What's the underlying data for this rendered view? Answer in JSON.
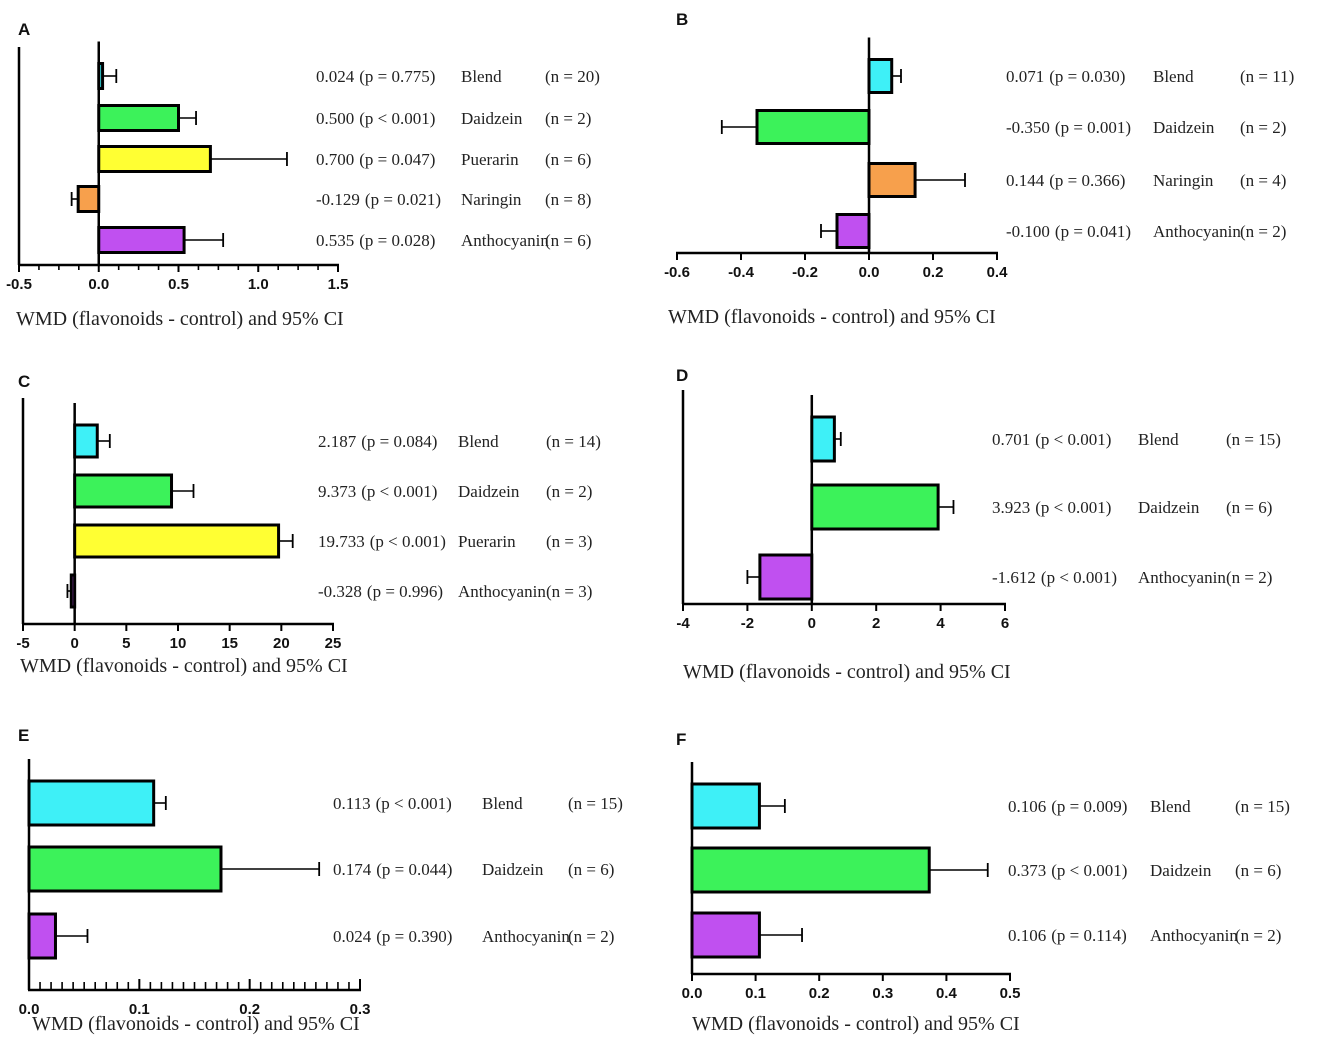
{
  "chart_data": [
    {
      "type": "bar",
      "orientation": "horizontal",
      "panel": "A",
      "xlabel": "WMD (flavonoids - control) and 95% CI",
      "xlim": [
        -0.5,
        1.5
      ],
      "xticks": [
        -0.5,
        0.0,
        0.5,
        1.0,
        1.5
      ],
      "tick_labels": [
        "-0.5",
        "0.0",
        "0.5",
        "1.0",
        "1.5"
      ],
      "ticks_per_major": 4,
      "bars": [
        {
          "name": "Blend",
          "value": 0.024,
          "ci_upper": 0.11,
          "color": "#3ef0f7",
          "effect": "0.024",
          "p": "(p = 0.775)",
          "n": "(n = 20)"
        },
        {
          "name": "Daidzein",
          "value": 0.5,
          "ci_upper": 0.61,
          "color": "#3cf25a",
          "effect": "0.500",
          "p": "(p < 0.001)",
          "n": "(n = 2)"
        },
        {
          "name": "Puerarin",
          "value": 0.7,
          "ci_upper": 1.18,
          "color": "#ffff33",
          "effect": "0.700",
          "p": "(p = 0.047)",
          "n": "(n = 6)"
        },
        {
          "name": "Naringin",
          "value": -0.129,
          "ci_lower": -0.17,
          "color": "#f7a04c",
          "effect": "-0.129",
          "p": "(p = 0.021)",
          "n": "(n = 8)"
        },
        {
          "name": "Anthocyanin",
          "value": 0.535,
          "ci_upper": 0.78,
          "color": "#c050f0",
          "effect": "0.535",
          "p": "(p = 0.028)",
          "n": "(n = 6)"
        }
      ]
    },
    {
      "type": "bar",
      "orientation": "horizontal",
      "panel": "B",
      "xlabel": "WMD (flavonoids - control) and 95% CI",
      "xlim": [
        -0.6,
        0.4
      ],
      "xticks": [
        -0.6,
        -0.4,
        -0.2,
        0.0,
        0.2,
        0.4
      ],
      "tick_labels": [
        "-0.6",
        "-0.4",
        "-0.2",
        "0.0",
        "0.2",
        "0.4"
      ],
      "ticks_per_major": 1,
      "bars": [
        {
          "name": "Blend",
          "value": 0.071,
          "ci_upper": 0.1,
          "color": "#3ef0f7",
          "effect": "0.071",
          "p": "(p = 0.030)",
          "n": "(n = 11)"
        },
        {
          "name": "Daidzein",
          "value": -0.35,
          "ci_lower": -0.46,
          "color": "#3cf25a",
          "effect": "-0.350",
          "p": "(p = 0.001)",
          "n": "(n = 2)"
        },
        {
          "name": "Naringin",
          "value": 0.144,
          "ci_upper": 0.3,
          "color": "#f7a04c",
          "effect": "0.144",
          "p": "(p = 0.366)",
          "n": "(n = 4)"
        },
        {
          "name": "Anthocyanin",
          "value": -0.1,
          "ci_lower": -0.15,
          "color": "#c050f0",
          "effect": "-0.100",
          "p": "(p = 0.041)",
          "n": "(n = 2)"
        }
      ]
    },
    {
      "type": "bar",
      "orientation": "horizontal",
      "panel": "C",
      "xlabel": "WMD (flavonoids - control) and 95% CI",
      "xlim": [
        -5,
        25
      ],
      "xticks": [
        -5,
        0,
        5,
        10,
        15,
        20,
        25
      ],
      "tick_labels": [
        "-5",
        "0",
        "5",
        "10",
        "15",
        "20",
        "25"
      ],
      "ticks_per_major": 1,
      "bars": [
        {
          "name": "Blend",
          "value": 2.187,
          "ci_upper": 3.4,
          "color": "#3ef0f7",
          "effect": "2.187",
          "p": "(p = 0.084)",
          "n": "(n = 14)"
        },
        {
          "name": "Daidzein",
          "value": 9.373,
          "ci_upper": 11.5,
          "color": "#3cf25a",
          "effect": "9.373",
          "p": "(p < 0.001)",
          "n": "(n = 2)"
        },
        {
          "name": "Puerarin",
          "value": 19.733,
          "ci_upper": 21.1,
          "color": "#ffff33",
          "effect": "19.733",
          "p": "(p < 0.001)",
          "n": "(n = 3)"
        },
        {
          "name": "Anthocyanin",
          "value": -0.328,
          "ci_lower": -0.7,
          "color": "#c050f0",
          "effect": "-0.328",
          "p": "(p = 0.996)",
          "n": "(n = 3)"
        }
      ]
    },
    {
      "type": "bar",
      "orientation": "horizontal",
      "panel": "D",
      "xlabel": "WMD (flavonoids - control) and 95% CI",
      "xlim": [
        -4,
        6
      ],
      "xticks": [
        -4,
        -2,
        0,
        2,
        4,
        6
      ],
      "tick_labels": [
        "-4",
        "-2",
        "0",
        "2",
        "4",
        "6"
      ],
      "ticks_per_major": 1,
      "bars": [
        {
          "name": "Blend",
          "value": 0.701,
          "ci_upper": 0.9,
          "color": "#3ef0f7",
          "effect": "0.701",
          "p": "(p < 0.001)",
          "n": "(n = 15)"
        },
        {
          "name": "Daidzein",
          "value": 3.923,
          "ci_upper": 4.4,
          "color": "#3cf25a",
          "effect": "3.923",
          "p": "(p < 0.001)",
          "n": "(n = 6)"
        },
        {
          "name": "Anthocyanin",
          "value": -1.612,
          "ci_lower": -2.0,
          "color": "#c050f0",
          "effect": "-1.612",
          "p": "(p < 0.001)",
          "n": "(n = 2)"
        }
      ]
    },
    {
      "type": "bar",
      "orientation": "horizontal",
      "panel": "E",
      "xlabel": "WMD (flavonoids - control) and 95% CI",
      "xlim": [
        0.0,
        0.3
      ],
      "xticks": [
        0.0,
        0.1,
        0.2,
        0.3
      ],
      "tick_labels": [
        "0.0",
        "0.1",
        "0.2",
        "0.3"
      ],
      "ticks_per_major": 10,
      "bars": [
        {
          "name": "Blend",
          "value": 0.113,
          "ci_upper": 0.124,
          "color": "#3ef0f7",
          "effect": "0.113",
          "p": "(p < 0.001)",
          "n": "(n = 15)"
        },
        {
          "name": "Daidzein",
          "value": 0.174,
          "ci_upper": 0.263,
          "color": "#3cf25a",
          "effect": "0.174",
          "p": "(p = 0.044)",
          "n": "(n = 6)"
        },
        {
          "name": "Anthocyanin",
          "value": 0.024,
          "ci_upper": 0.053,
          "color": "#c050f0",
          "effect": "0.024",
          "p": "(p = 0.390)",
          "n": "(n = 2)"
        }
      ]
    },
    {
      "type": "bar",
      "orientation": "horizontal",
      "panel": "F",
      "xlabel": "WMD (flavonoids - control) and 95% CI",
      "xlim": [
        0.0,
        0.5
      ],
      "xticks": [
        0.0,
        0.1,
        0.2,
        0.3,
        0.4,
        0.5
      ],
      "tick_labels": [
        "0.0",
        "0.1",
        "0.2",
        "0.3",
        "0.4",
        "0.5"
      ],
      "ticks_per_major": 1,
      "bars": [
        {
          "name": "Blend",
          "value": 0.106,
          "ci_upper": 0.146,
          "color": "#3ef0f7",
          "effect": "0.106",
          "p": "(p = 0.009)",
          "n": "(n = 15)"
        },
        {
          "name": "Daidzein",
          "value": 0.373,
          "ci_upper": 0.465,
          "color": "#3cf25a",
          "effect": "0.373",
          "p": "(p < 0.001)",
          "n": "(n = 6)"
        },
        {
          "name": "Anthocyanin",
          "value": 0.106,
          "ci_upper": 0.173,
          "color": "#c050f0",
          "effect": "0.106",
          "p": "(p = 0.114)",
          "n": "(n = 2)"
        }
      ]
    }
  ]
}
